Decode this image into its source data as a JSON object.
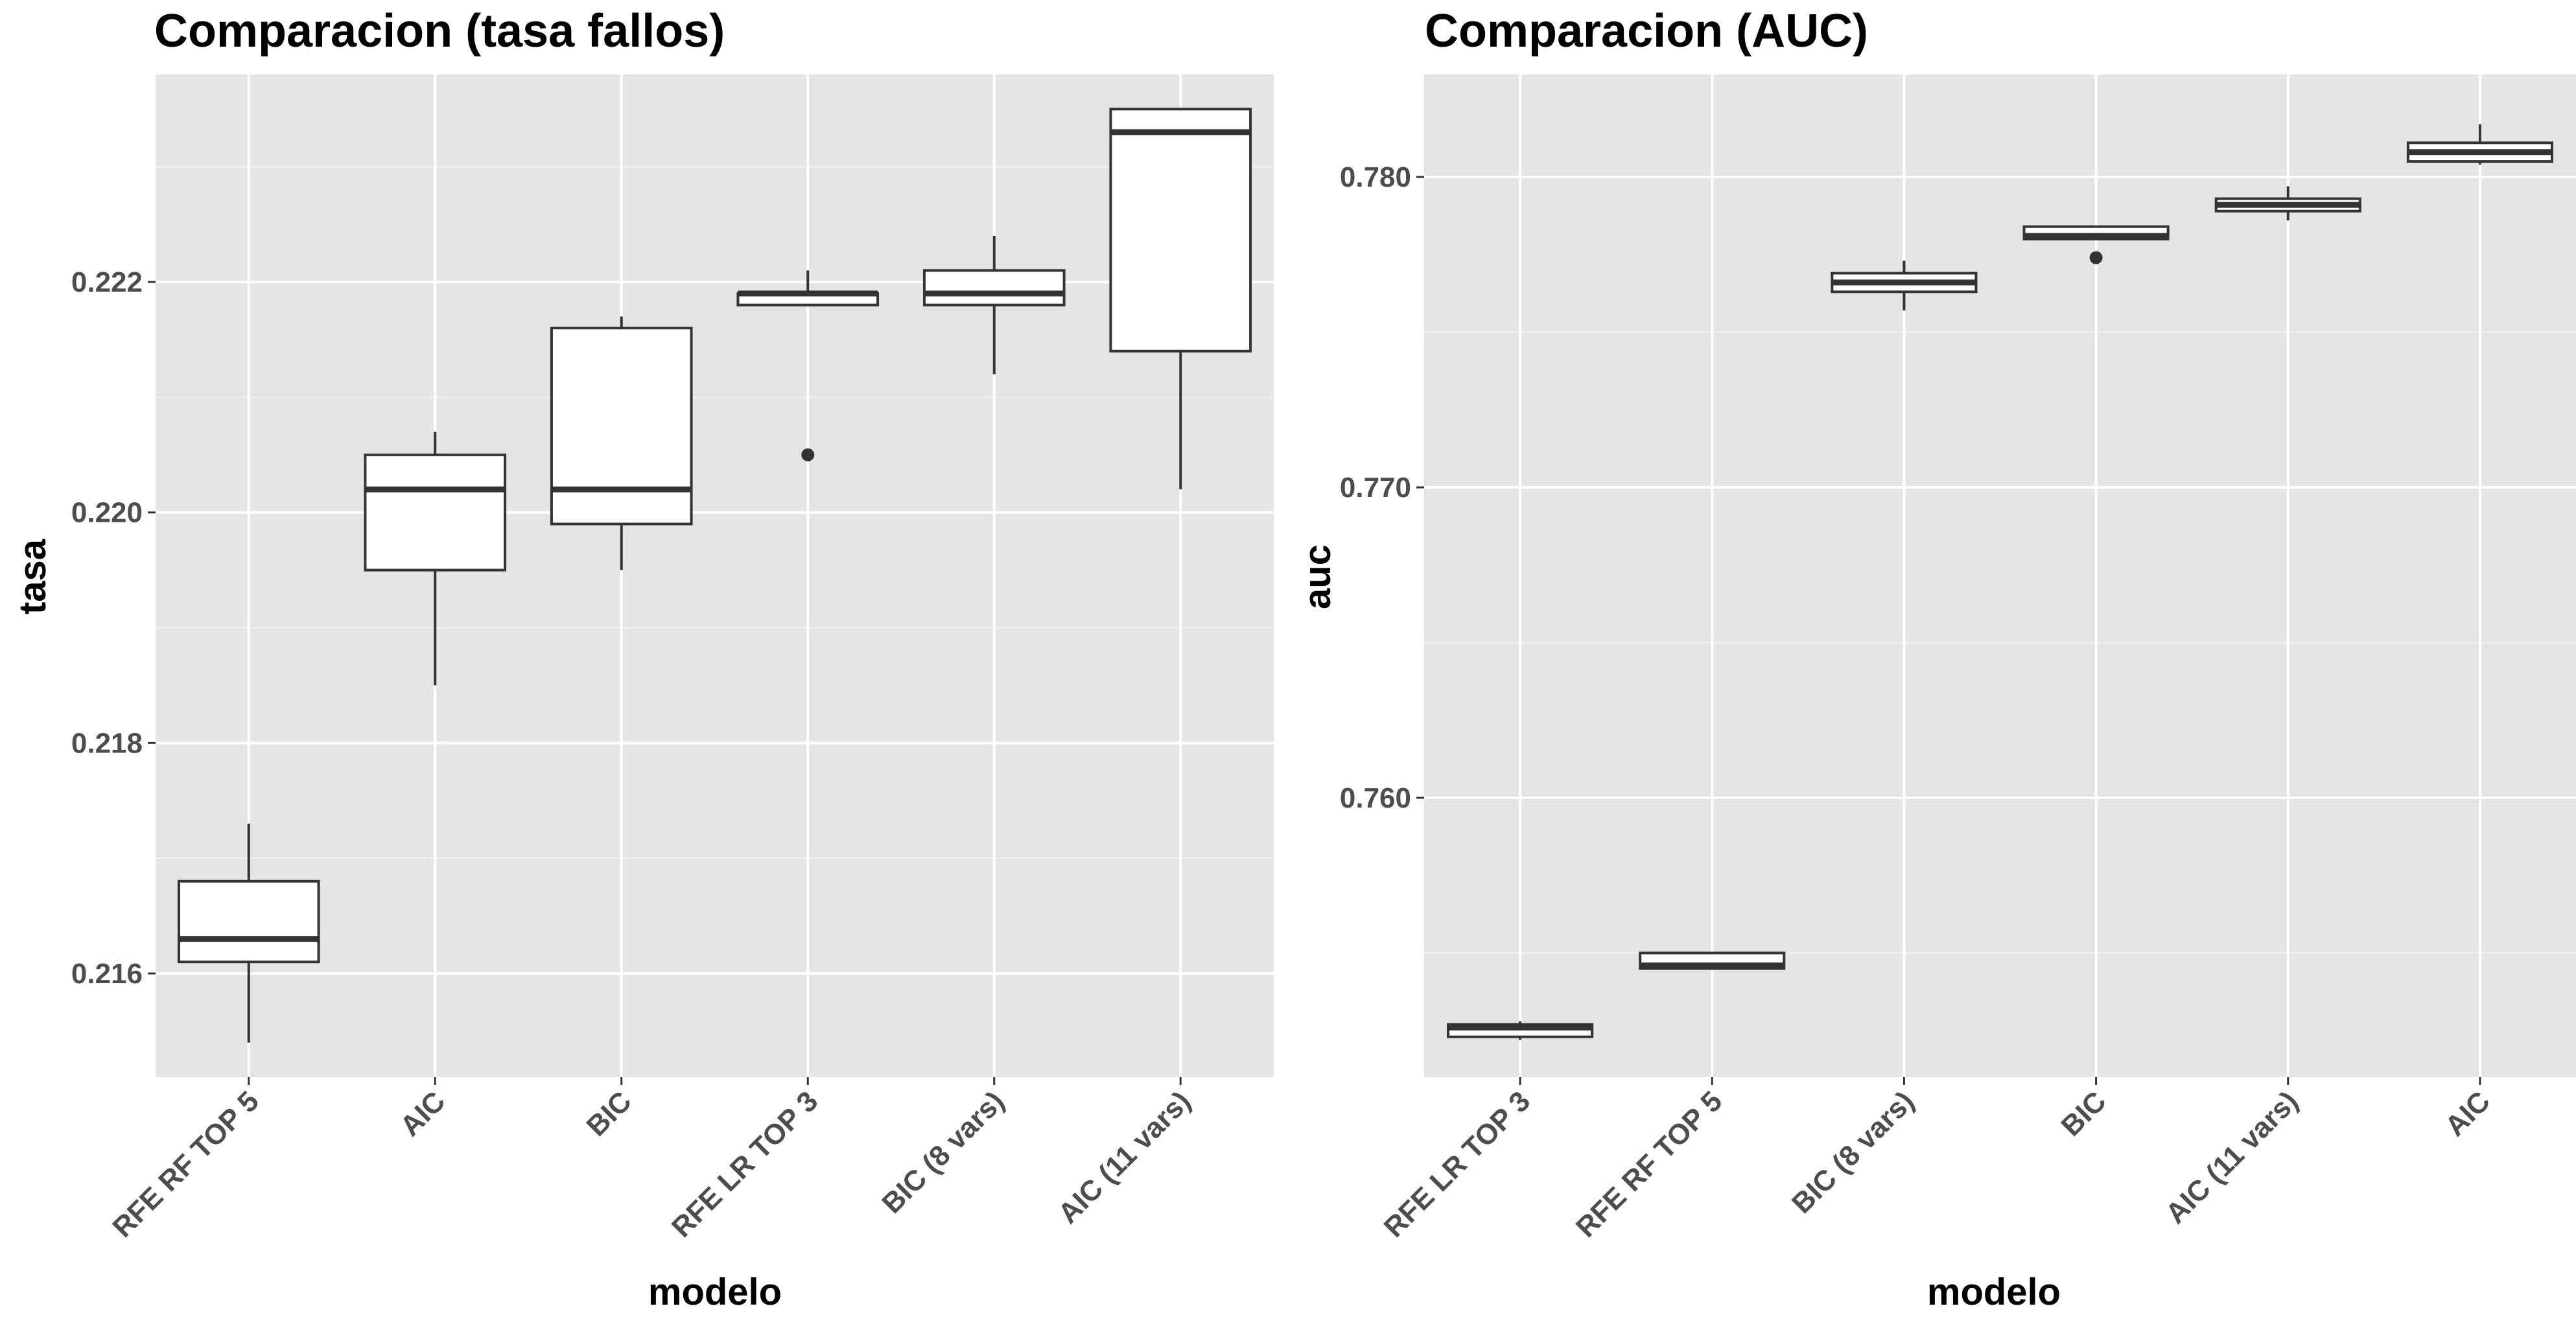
{
  "chart_data": [
    {
      "type": "boxplot",
      "title": "Comparacion (tasa fallos)",
      "xlabel": "modelo",
      "ylabel": "tasa",
      "ylim": [
        0.2151,
        0.2238
      ],
      "yticks": [
        "0.216",
        "0.218",
        "0.220",
        "0.222"
      ],
      "ytick_values": [
        0.216,
        0.218,
        0.22,
        0.222
      ],
      "grid": true,
      "categories": [
        "RFE RF TOP 5",
        "AIC",
        "BIC",
        "RFE LR TOP 3",
        "BIC (8 vars)",
        "AIC (11 vars)"
      ],
      "boxes": [
        {
          "whisker_low": 0.2154,
          "q1": 0.2161,
          "median": 0.2163,
          "q3": 0.2168,
          "whisker_high": 0.2173,
          "outliers": []
        },
        {
          "whisker_low": 0.2185,
          "q1": 0.2195,
          "median": 0.2202,
          "q3": 0.2205,
          "whisker_high": 0.2207,
          "outliers": []
        },
        {
          "whisker_low": 0.2195,
          "q1": 0.2199,
          "median": 0.2202,
          "q3": 0.2216,
          "whisker_high": 0.2217,
          "outliers": []
        },
        {
          "whisker_low": 0.2218,
          "q1": 0.2218,
          "median": 0.2219,
          "q3": 0.2219,
          "whisker_high": 0.2221,
          "outliers": [
            0.2205
          ]
        },
        {
          "whisker_low": 0.2212,
          "q1": 0.2218,
          "median": 0.2219,
          "q3": 0.2221,
          "whisker_high": 0.2224,
          "outliers": []
        },
        {
          "whisker_low": 0.2202,
          "q1": 0.2214,
          "median": 0.2233,
          "q3": 0.2235,
          "whisker_high": 0.2235,
          "outliers": []
        }
      ]
    },
    {
      "type": "boxplot",
      "title": "Comparacion (AUC)",
      "xlabel": "modelo",
      "ylabel": "auc",
      "ylim": [
        0.751,
        0.7833
      ],
      "yticks": [
        "0.760",
        "0.770",
        "0.780"
      ],
      "ytick_values": [
        0.76,
        0.77,
        0.78
      ],
      "grid": true,
      "categories": [
        "RFE LR TOP 3",
        "RFE RF TOP 5",
        "BIC (8 vars)",
        "BIC",
        "AIC (11 vars)",
        "AIC"
      ],
      "boxes": [
        {
          "whisker_low": 0.7522,
          "q1": 0.7523,
          "median": 0.7526,
          "q3": 0.7527,
          "whisker_high": 0.7528,
          "outliers": []
        },
        {
          "whisker_low": 0.7545,
          "q1": 0.7545,
          "median": 0.7546,
          "q3": 0.755,
          "whisker_high": 0.755,
          "outliers": []
        },
        {
          "whisker_low": 0.7757,
          "q1": 0.7763,
          "median": 0.7766,
          "q3": 0.7769,
          "whisker_high": 0.7773,
          "outliers": []
        },
        {
          "whisker_low": 0.778,
          "q1": 0.778,
          "median": 0.7781,
          "q3": 0.7784,
          "whisker_high": 0.7784,
          "outliers": [
            0.7774
          ]
        },
        {
          "whisker_low": 0.7786,
          "q1": 0.7789,
          "median": 0.7791,
          "q3": 0.7793,
          "whisker_high": 0.7797,
          "outliers": []
        },
        {
          "whisker_low": 0.7804,
          "q1": 0.7805,
          "median": 0.7808,
          "q3": 0.7811,
          "whisker_high": 0.7817,
          "outliers": []
        }
      ]
    }
  ]
}
